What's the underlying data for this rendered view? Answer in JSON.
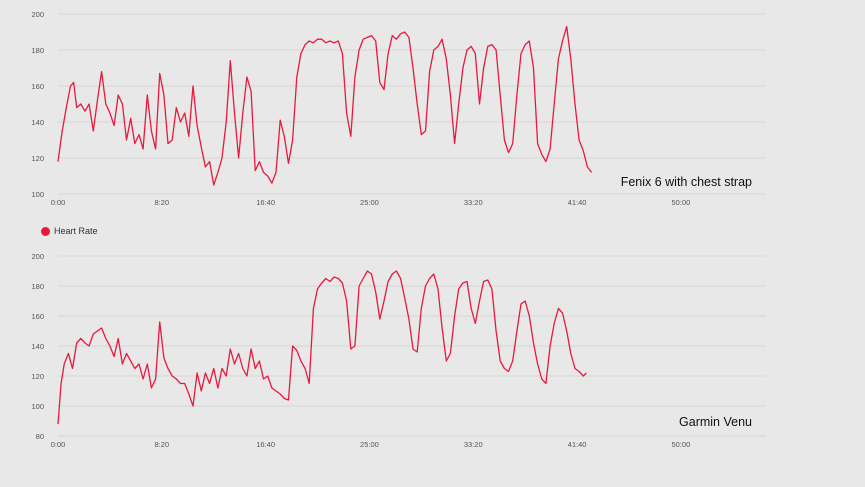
{
  "colors": {
    "line": "#e8193c",
    "grid": "#d0d0d0",
    "tick_text": "#555555",
    "label_text": "#111111"
  },
  "legend": {
    "label": "Heart Rate",
    "color": "#e8193c"
  },
  "chart_data": [
    {
      "type": "line",
      "title": "",
      "annotation": "Fenix 6 with chest strap",
      "xlabel": "",
      "ylabel": "",
      "x_unit": "seconds",
      "xlim": [
        0,
        3410
      ],
      "ylim": [
        100,
        200
      ],
      "yticks": [
        100,
        120,
        140,
        160,
        180,
        200
      ],
      "xticks": [
        {
          "value": 0,
          "label": "0:00"
        },
        {
          "value": 500,
          "label": "8:20"
        },
        {
          "value": 1000,
          "label": "16:40"
        },
        {
          "value": 1500,
          "label": "25:00"
        },
        {
          "value": 2000,
          "label": "33:20"
        },
        {
          "value": 2500,
          "label": "41:40"
        },
        {
          "value": 3000,
          "label": "50:00"
        }
      ],
      "grid": true,
      "series": [
        {
          "name": "Heart Rate",
          "points": [
            [
              0,
              118
            ],
            [
              20,
              135
            ],
            [
              40,
              148
            ],
            [
              60,
              160
            ],
            [
              75,
              162
            ],
            [
              90,
              148
            ],
            [
              110,
              150
            ],
            [
              130,
              146
            ],
            [
              150,
              150
            ],
            [
              170,
              135
            ],
            [
              190,
              152
            ],
            [
              210,
              168
            ],
            [
              230,
              150
            ],
            [
              250,
              145
            ],
            [
              270,
              138
            ],
            [
              290,
              155
            ],
            [
              310,
              150
            ],
            [
              330,
              130
            ],
            [
              350,
              142
            ],
            [
              370,
              128
            ],
            [
              390,
              133
            ],
            [
              410,
              125
            ],
            [
              430,
              155
            ],
            [
              450,
              135
            ],
            [
              470,
              125
            ],
            [
              490,
              167
            ],
            [
              510,
              155
            ],
            [
              530,
              128
            ],
            [
              550,
              130
            ],
            [
              570,
              148
            ],
            [
              590,
              140
            ],
            [
              610,
              145
            ],
            [
              630,
              132
            ],
            [
              650,
              160
            ],
            [
              670,
              138
            ],
            [
              690,
              126
            ],
            [
              710,
              115
            ],
            [
              730,
              118
            ],
            [
              750,
              105
            ],
            [
              770,
              112
            ],
            [
              790,
              120
            ],
            [
              810,
              140
            ],
            [
              830,
              174
            ],
            [
              850,
              145
            ],
            [
              870,
              120
            ],
            [
              890,
              145
            ],
            [
              910,
              165
            ],
            [
              930,
              157
            ],
            [
              950,
              113
            ],
            [
              970,
              118
            ],
            [
              990,
              112
            ],
            [
              1010,
              110
            ],
            [
              1030,
              106
            ],
            [
              1050,
              112
            ],
            [
              1070,
              141
            ],
            [
              1090,
              132
            ],
            [
              1110,
              117
            ],
            [
              1130,
              130
            ],
            [
              1150,
              165
            ],
            [
              1170,
              178
            ],
            [
              1190,
              183
            ],
            [
              1210,
              185
            ],
            [
              1230,
              184
            ],
            [
              1250,
              186
            ],
            [
              1270,
              186
            ],
            [
              1290,
              184
            ],
            [
              1310,
              185
            ],
            [
              1330,
              184
            ],
            [
              1350,
              185
            ],
            [
              1370,
              178
            ],
            [
              1390,
              145
            ],
            [
              1410,
              132
            ],
            [
              1430,
              165
            ],
            [
              1450,
              180
            ],
            [
              1470,
              186
            ],
            [
              1490,
              187
            ],
            [
              1510,
              188
            ],
            [
              1530,
              185
            ],
            [
              1550,
              162
            ],
            [
              1570,
              158
            ],
            [
              1590,
              178
            ],
            [
              1610,
              188
            ],
            [
              1630,
              186
            ],
            [
              1650,
              189
            ],
            [
              1670,
              190
            ],
            [
              1690,
              187
            ],
            [
              1710,
              170
            ],
            [
              1730,
              150
            ],
            [
              1750,
              133
            ],
            [
              1770,
              135
            ],
            [
              1790,
              168
            ],
            [
              1810,
              180
            ],
            [
              1830,
              182
            ],
            [
              1850,
              186
            ],
            [
              1870,
              175
            ],
            [
              1890,
              155
            ],
            [
              1910,
              128
            ],
            [
              1930,
              150
            ],
            [
              1950,
              170
            ],
            [
              1970,
              180
            ],
            [
              1990,
              182
            ],
            [
              2010,
              178
            ],
            [
              2030,
              150
            ],
            [
              2050,
              170
            ],
            [
              2070,
              182
            ],
            [
              2090,
              183
            ],
            [
              2110,
              180
            ],
            [
              2130,
              155
            ],
            [
              2150,
              130
            ],
            [
              2170,
              123
            ],
            [
              2190,
              128
            ],
            [
              2210,
              155
            ],
            [
              2230,
              178
            ],
            [
              2250,
              183
            ],
            [
              2270,
              185
            ],
            [
              2290,
              170
            ],
            [
              2310,
              128
            ],
            [
              2330,
              122
            ],
            [
              2350,
              118
            ],
            [
              2370,
              125
            ],
            [
              2390,
              150
            ],
            [
              2410,
              175
            ],
            [
              2430,
              185
            ],
            [
              2450,
              193
            ],
            [
              2470,
              175
            ],
            [
              2490,
              150
            ],
            [
              2510,
              130
            ],
            [
              2530,
              124
            ],
            [
              2550,
              115
            ],
            [
              2570,
              112
            ]
          ]
        }
      ]
    },
    {
      "type": "line",
      "title": "",
      "annotation": "Garmin Venu",
      "xlabel": "",
      "ylabel": "",
      "x_unit": "seconds",
      "xlim": [
        0,
        3410
      ],
      "ylim": [
        80,
        200
      ],
      "yticks": [
        80,
        100,
        120,
        140,
        160,
        180,
        200
      ],
      "xticks": [
        {
          "value": 0,
          "label": "0:00"
        },
        {
          "value": 500,
          "label": "8:20"
        },
        {
          "value": 1000,
          "label": "16:40"
        },
        {
          "value": 1500,
          "label": "25:00"
        },
        {
          "value": 2000,
          "label": "33:20"
        },
        {
          "value": 2500,
          "label": "41:40"
        },
        {
          "value": 3000,
          "label": "50:00"
        }
      ],
      "grid": true,
      "series": [
        {
          "name": "Heart Rate",
          "points": [
            [
              0,
              88
            ],
            [
              15,
              115
            ],
            [
              30,
              128
            ],
            [
              50,
              135
            ],
            [
              70,
              125
            ],
            [
              90,
              142
            ],
            [
              110,
              145
            ],
            [
              130,
              142
            ],
            [
              150,
              140
            ],
            [
              170,
              148
            ],
            [
              190,
              150
            ],
            [
              210,
              152
            ],
            [
              230,
              145
            ],
            [
              250,
              140
            ],
            [
              270,
              133
            ],
            [
              290,
              145
            ],
            [
              310,
              128
            ],
            [
              330,
              135
            ],
            [
              350,
              130
            ],
            [
              370,
              125
            ],
            [
              390,
              128
            ],
            [
              410,
              118
            ],
            [
              430,
              128
            ],
            [
              450,
              112
            ],
            [
              470,
              118
            ],
            [
              490,
              156
            ],
            [
              510,
              132
            ],
            [
              530,
              125
            ],
            [
              550,
              120
            ],
            [
              570,
              118
            ],
            [
              590,
              115
            ],
            [
              610,
              115
            ],
            [
              630,
              108
            ],
            [
              650,
              100
            ],
            [
              670,
              122
            ],
            [
              690,
              110
            ],
            [
              710,
              122
            ],
            [
              730,
              115
            ],
            [
              750,
              125
            ],
            [
              770,
              112
            ],
            [
              790,
              125
            ],
            [
              810,
              120
            ],
            [
              830,
              138
            ],
            [
              850,
              128
            ],
            [
              870,
              135
            ],
            [
              890,
              125
            ],
            [
              910,
              120
            ],
            [
              930,
              138
            ],
            [
              950,
              125
            ],
            [
              970,
              130
            ],
            [
              990,
              118
            ],
            [
              1010,
              120
            ],
            [
              1030,
              112
            ],
            [
              1050,
              110
            ],
            [
              1070,
              108
            ],
            [
              1090,
              105
            ],
            [
              1110,
              104
            ],
            [
              1130,
              140
            ],
            [
              1150,
              137
            ],
            [
              1170,
              130
            ],
            [
              1190,
              125
            ],
            [
              1210,
              115
            ],
            [
              1230,
              165
            ],
            [
              1250,
              178
            ],
            [
              1270,
              182
            ],
            [
              1290,
              185
            ],
            [
              1310,
              183
            ],
            [
              1330,
              186
            ],
            [
              1350,
              185
            ],
            [
              1370,
              182
            ],
            [
              1390,
              170
            ],
            [
              1410,
              138
            ],
            [
              1430,
              140
            ],
            [
              1450,
              180
            ],
            [
              1470,
              185
            ],
            [
              1490,
              190
            ],
            [
              1510,
              188
            ],
            [
              1530,
              176
            ],
            [
              1550,
              158
            ],
            [
              1570,
              170
            ],
            [
              1590,
              183
            ],
            [
              1610,
              188
            ],
            [
              1630,
              190
            ],
            [
              1650,
              185
            ],
            [
              1670,
              172
            ],
            [
              1690,
              158
            ],
            [
              1710,
              138
            ],
            [
              1730,
              136
            ],
            [
              1750,
              165
            ],
            [
              1770,
              180
            ],
            [
              1790,
              185
            ],
            [
              1810,
              188
            ],
            [
              1830,
              178
            ],
            [
              1850,
              152
            ],
            [
              1870,
              130
            ],
            [
              1890,
              135
            ],
            [
              1910,
              160
            ],
            [
              1930,
              178
            ],
            [
              1950,
              182
            ],
            [
              1970,
              183
            ],
            [
              1990,
              165
            ],
            [
              2010,
              155
            ],
            [
              2030,
              170
            ],
            [
              2050,
              183
            ],
            [
              2070,
              184
            ],
            [
              2090,
              178
            ],
            [
              2110,
              150
            ],
            [
              2130,
              130
            ],
            [
              2150,
              125
            ],
            [
              2170,
              123
            ],
            [
              2190,
              130
            ],
            [
              2210,
              150
            ],
            [
              2230,
              168
            ],
            [
              2250,
              170
            ],
            [
              2270,
              160
            ],
            [
              2290,
              142
            ],
            [
              2310,
              128
            ],
            [
              2330,
              118
            ],
            [
              2350,
              115
            ],
            [
              2370,
              140
            ],
            [
              2390,
              155
            ],
            [
              2410,
              165
            ],
            [
              2430,
              162
            ],
            [
              2450,
              150
            ],
            [
              2470,
              135
            ],
            [
              2490,
              125
            ],
            [
              2510,
              123
            ],
            [
              2530,
              120
            ],
            [
              2545,
              122
            ]
          ]
        }
      ]
    }
  ]
}
